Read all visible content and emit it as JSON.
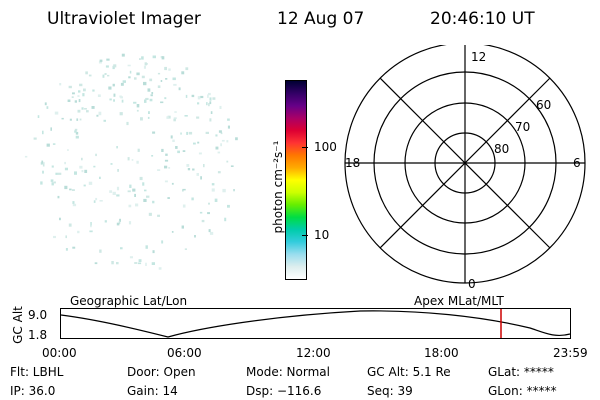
{
  "header": {
    "title": "Ultraviolet Imager",
    "date": "12 Aug 07",
    "time": "20:46:10 UT"
  },
  "colorbar": {
    "label": "photon cm⁻²s⁻¹",
    "tick_100": "100",
    "tick_10": "10",
    "colors": [
      "#000033",
      "#330066",
      "#660088",
      "#aa0066",
      "#dd0033",
      "#ff3333",
      "#ff7700",
      "#ffaa00",
      "#ffff00",
      "#ccff00",
      "#66ee00",
      "#00dd44",
      "#00ccaa",
      "#33ccdd",
      "#99ddee",
      "#ddeeee",
      "#ffffff"
    ]
  },
  "polar_plot": {
    "mlt_top": "12",
    "mlt_bottom": "0",
    "mlt_left": "18",
    "mlt_right": "6",
    "lat_60": "60",
    "lat_70": "70",
    "lat_80": "80"
  },
  "timeline": {
    "left_title": "Geographic Lat/Lon",
    "right_title": "Apex MLat/MLT",
    "axis_label": "GC Alt",
    "y_top": "9.0",
    "y_bottom": "1.8",
    "x_ticks": [
      "00:00",
      "06:00",
      "12:00",
      "18:00",
      "23:59"
    ],
    "marker_color": "#cc0000"
  },
  "info": {
    "flt": "Flt: LBHL",
    "ip": "IP: 36.0",
    "door": "Door: Open",
    "gain": "Gain: 14",
    "mode": "Mode: Normal",
    "dsp": "Dsp: −116.6",
    "gc_alt": "GC Alt: 5.1 Re",
    "seq": "Seq: 39",
    "glat": "GLat: *****",
    "glon": "GLon: *****"
  }
}
